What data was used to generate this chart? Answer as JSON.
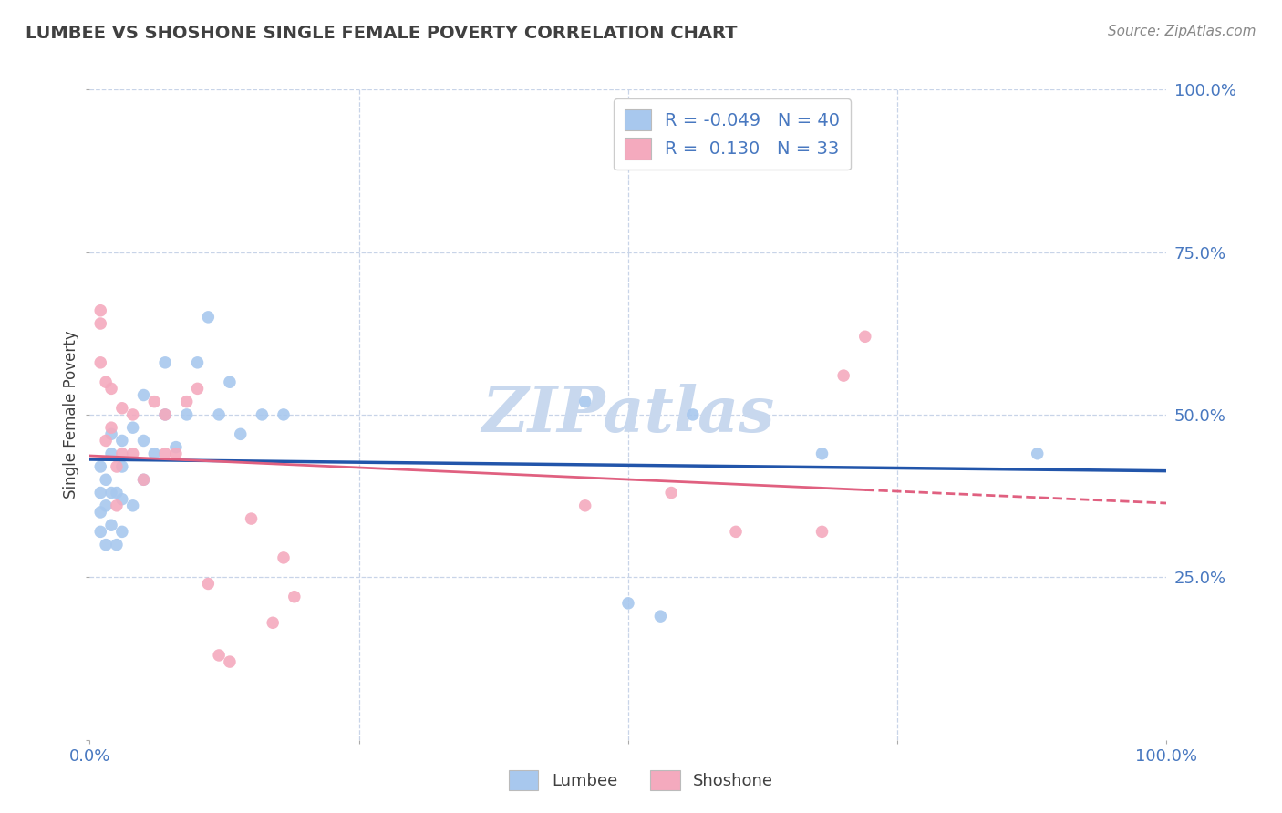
{
  "title": "LUMBEE VS SHOSHONE SINGLE FEMALE POVERTY CORRELATION CHART",
  "source_text": "Source: ZipAtlas.com",
  "ylabel": "Single Female Poverty",
  "xlim": [
    0,
    1
  ],
  "ylim": [
    0,
    1
  ],
  "lumbee_R": -0.049,
  "lumbee_N": 40,
  "shoshone_R": 0.13,
  "shoshone_N": 33,
  "lumbee_color": "#A8C8EE",
  "shoshone_color": "#F4AABE",
  "lumbee_line_color": "#2255AA",
  "shoshone_line_color": "#E06080",
  "watermark": "ZIPatlas",
  "watermark_color": "#C8D8EE",
  "lumbee_x": [
    0.01,
    0.01,
    0.01,
    0.01,
    0.015,
    0.015,
    0.015,
    0.02,
    0.02,
    0.02,
    0.02,
    0.025,
    0.025,
    0.03,
    0.03,
    0.03,
    0.03,
    0.04,
    0.04,
    0.05,
    0.05,
    0.05,
    0.06,
    0.07,
    0.07,
    0.08,
    0.09,
    0.1,
    0.11,
    0.12,
    0.13,
    0.14,
    0.16,
    0.18,
    0.46,
    0.5,
    0.53,
    0.56,
    0.68,
    0.88
  ],
  "lumbee_y": [
    0.32,
    0.35,
    0.38,
    0.42,
    0.3,
    0.36,
    0.4,
    0.33,
    0.38,
    0.44,
    0.47,
    0.3,
    0.38,
    0.32,
    0.37,
    0.42,
    0.46,
    0.36,
    0.48,
    0.4,
    0.46,
    0.53,
    0.44,
    0.5,
    0.58,
    0.45,
    0.5,
    0.58,
    0.65,
    0.5,
    0.55,
    0.47,
    0.5,
    0.5,
    0.52,
    0.21,
    0.19,
    0.5,
    0.44,
    0.44
  ],
  "shoshone_x": [
    0.01,
    0.01,
    0.01,
    0.015,
    0.015,
    0.02,
    0.02,
    0.025,
    0.025,
    0.03,
    0.03,
    0.04,
    0.04,
    0.05,
    0.06,
    0.07,
    0.07,
    0.08,
    0.09,
    0.1,
    0.11,
    0.12,
    0.13,
    0.15,
    0.17,
    0.18,
    0.19,
    0.46,
    0.54,
    0.6,
    0.68,
    0.7,
    0.72
  ],
  "shoshone_y": [
    0.64,
    0.66,
    0.58,
    0.55,
    0.46,
    0.54,
    0.48,
    0.42,
    0.36,
    0.44,
    0.51,
    0.44,
    0.5,
    0.4,
    0.52,
    0.44,
    0.5,
    0.44,
    0.52,
    0.54,
    0.24,
    0.13,
    0.12,
    0.34,
    0.18,
    0.28,
    0.22,
    0.36,
    0.38,
    0.32,
    0.32,
    0.56,
    0.62
  ],
  "grid_color": "#C8D4E8",
  "bg_color": "#FFFFFF",
  "title_color": "#404040",
  "tick_label_color": "#4878C0",
  "source_color": "#888888",
  "marker_size": 95,
  "legend_R_color": "#E06080",
  "legend_N_color": "#4878C0"
}
